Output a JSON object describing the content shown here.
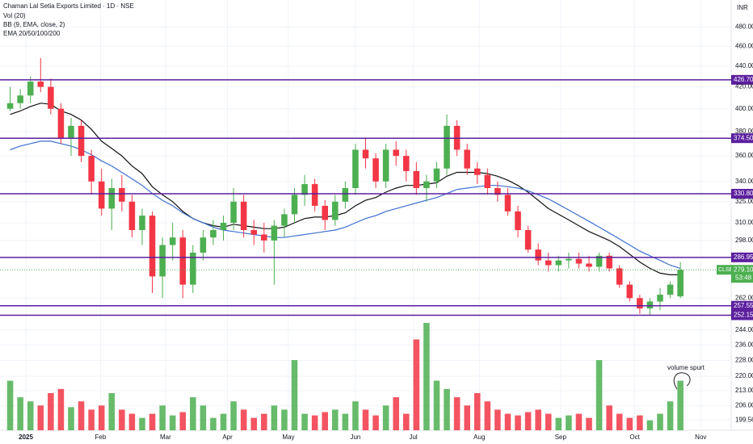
{
  "chart_data": {
    "type": "candlestick",
    "title": "Chaman Lal Setia Exports Limited · 1D · NSE",
    "indicators": [
      "Vol (20)",
      "BB (9, EMA, close, 2)",
      "EMA 20/50/100/200"
    ],
    "currency": "INR",
    "log_scale": true,
    "up_color": "#4caf50",
    "down_color": "#f23645",
    "xlim": [
      -1,
      71
    ],
    "xticks": [
      {
        "value": 1.55,
        "label": "2025"
      },
      {
        "value": 8.9,
        "label": "Feb"
      },
      {
        "value": 15.3,
        "label": "Mar"
      },
      {
        "value": 21.4,
        "label": "Apr"
      },
      {
        "value": 27.4,
        "label": "May"
      },
      {
        "value": 34,
        "label": "Jun"
      },
      {
        "value": 39.7,
        "label": "Jul"
      },
      {
        "value": 46.2,
        "label": "Aug"
      },
      {
        "value": 54.2,
        "label": "Sep"
      },
      {
        "value": 61.5,
        "label": "Oct"
      },
      {
        "value": 68,
        "label": "Nov"
      }
    ],
    "ylim": [
      195,
      510
    ],
    "yticks": [
      {
        "value": 480,
        "label": "480.00"
      },
      {
        "value": 460,
        "label": "460.00"
      },
      {
        "value": 440,
        "label": "440.00"
      },
      {
        "value": 420,
        "label": "420.00"
      },
      {
        "value": 400,
        "label": "400.00"
      },
      {
        "value": 380,
        "label": "380.00"
      },
      {
        "value": 360,
        "label": "360.00"
      },
      {
        "value": 340,
        "label": "340.00"
      },
      {
        "value": 325,
        "label": "325.00"
      },
      {
        "value": 310,
        "label": "310.00"
      },
      {
        "value": 298,
        "label": "298.00"
      },
      {
        "value": 262,
        "label": "262.00"
      },
      {
        "value": 244,
        "label": "244.00"
      },
      {
        "value": 236,
        "label": "236.00"
      },
      {
        "value": 228,
        "label": "228.00"
      },
      {
        "value": 220,
        "label": "220.00"
      },
      {
        "value": 213,
        "label": "213.00"
      },
      {
        "value": 206,
        "label": "206.00"
      },
      {
        "value": 199.56,
        "label": "199.56"
      }
    ],
    "grid": true,
    "levels": {
      "color": "#5b1f9e",
      "values": [
        {
          "value": 426.7,
          "label": "426.70"
        },
        {
          "value": 374.5,
          "label": "374.50"
        },
        {
          "value": 330.8,
          "label": "330.80"
        },
        {
          "value": 286.95,
          "label": "286.95"
        },
        {
          "value": 257.55,
          "label": "257.55"
        },
        {
          "value": 252.15,
          "label": "252.15"
        }
      ]
    },
    "last_price": {
      "value": 279.1,
      "label": "279.10",
      "symbol": "CLSEL",
      "countdown": "53:48"
    },
    "candles": [
      [
        400,
        420,
        398,
        405
      ],
      [
        405,
        418,
        400,
        412
      ],
      [
        412,
        430,
        405,
        425
      ],
      [
        425,
        448,
        415,
        420
      ],
      [
        420,
        428,
        395,
        400
      ],
      [
        400,
        405,
        370,
        375
      ],
      [
        375,
        392,
        360,
        385
      ],
      [
        385,
        390,
        355,
        360
      ],
      [
        360,
        365,
        330,
        340
      ],
      [
        340,
        350,
        315,
        320
      ],
      [
        320,
        342,
        305,
        335
      ],
      [
        335,
        345,
        318,
        325
      ],
      [
        325,
        330,
        300,
        305
      ],
      [
        305,
        320,
        295,
        315
      ],
      [
        315,
        318,
        265,
        275
      ],
      [
        275,
        300,
        262,
        295
      ],
      [
        295,
        310,
        285,
        300
      ],
      [
        300,
        305,
        262,
        270
      ],
      [
        270,
        295,
        265,
        290
      ],
      [
        290,
        305,
        285,
        300
      ],
      [
        300,
        312,
        295,
        305
      ],
      [
        305,
        315,
        298,
        310
      ],
      [
        310,
        335,
        305,
        325
      ],
      [
        325,
        330,
        300,
        305
      ],
      [
        305,
        312,
        295,
        302
      ],
      [
        302,
        310,
        290,
        298
      ],
      [
        298,
        312,
        270,
        308
      ],
      [
        308,
        320,
        300,
        316
      ],
      [
        316,
        335,
        310,
        330
      ],
      [
        330,
        345,
        322,
        338
      ],
      [
        338,
        342,
        318,
        322
      ],
      [
        322,
        326,
        305,
        312
      ],
      [
        312,
        330,
        308,
        325
      ],
      [
        325,
        340,
        320,
        335
      ],
      [
        335,
        370,
        330,
        365
      ],
      [
        365,
        375,
        350,
        358
      ],
      [
        358,
        362,
        335,
        340
      ],
      [
        340,
        370,
        335,
        365
      ],
      [
        365,
        372,
        352,
        360
      ],
      [
        360,
        365,
        340,
        348
      ],
      [
        348,
        355,
        330,
        335
      ],
      [
        335,
        345,
        325,
        340
      ],
      [
        340,
        355,
        335,
        350
      ],
      [
        350,
        395,
        345,
        385
      ],
      [
        385,
        390,
        360,
        365
      ],
      [
        365,
        370,
        345,
        350
      ],
      [
        350,
        355,
        338,
        345
      ],
      [
        345,
        350,
        330,
        335
      ],
      [
        335,
        340,
        325,
        330
      ],
      [
        330,
        335,
        315,
        318
      ],
      [
        318,
        322,
        300,
        305
      ],
      [
        305,
        308,
        290,
        292
      ],
      [
        292,
        296,
        282,
        285
      ],
      [
        285,
        290,
        278,
        282
      ],
      [
        282,
        288,
        278,
        285
      ],
      [
        285,
        290,
        280,
        286
      ],
      [
        286,
        290,
        280,
        283
      ],
      [
        283,
        288,
        278,
        281
      ],
      [
        281,
        290,
        278,
        288
      ],
      [
        288,
        290,
        278,
        280
      ],
      [
        280,
        282,
        268,
        270
      ],
      [
        270,
        272,
        260,
        262
      ],
      [
        262,
        264,
        253,
        256
      ],
      [
        256,
        262,
        252,
        260
      ],
      [
        260,
        268,
        255,
        264
      ],
      [
        264,
        272,
        262,
        270
      ],
      [
        263,
        284,
        262,
        279.1
      ]
    ],
    "ema": [
      {
        "color": "#111111",
        "values": [
          395,
          398,
          402,
          405,
          404,
          398,
          395,
          390,
          382,
          372,
          366,
          360,
          352,
          346,
          336,
          330,
          325,
          318,
          313,
          310,
          308,
          307,
          309,
          308,
          307,
          306,
          306,
          307,
          310,
          313,
          314,
          314,
          315,
          317,
          322,
          326,
          328,
          332,
          335,
          337,
          337,
          338,
          339,
          344,
          347,
          347,
          347,
          346,
          344,
          341,
          337,
          332,
          326,
          320,
          316,
          312,
          308,
          304,
          301,
          298,
          294,
          289,
          284,
          280,
          277,
          276,
          276
        ]
      },
      {
        "color": "#3d6fd1",
        "values": [
          365,
          368,
          370,
          372,
          372,
          370,
          368,
          365,
          361,
          356,
          352,
          347,
          342,
          337,
          331,
          326,
          322,
          317,
          313,
          310,
          307,
          305,
          304,
          303,
          302,
          301,
          300,
          300,
          301,
          302,
          303,
          304,
          305,
          307,
          310,
          313,
          315,
          318,
          320,
          322,
          324,
          326,
          328,
          331,
          334,
          335,
          336,
          337,
          337,
          336,
          335,
          333,
          330,
          327,
          323,
          319,
          315,
          311,
          307,
          303,
          299,
          295,
          291,
          288,
          285,
          282,
          280
        ]
      }
    ],
    "volume": {
      "ylim": [
        0,
        130
      ],
      "values": [
        60,
        40,
        35,
        30,
        45,
        50,
        28,
        35,
        25,
        30,
        45,
        25,
        20,
        15,
        20,
        30,
        18,
        22,
        40,
        30,
        15,
        20,
        35,
        25,
        15,
        20,
        30,
        25,
        85,
        20,
        18,
        22,
        25,
        20,
        35,
        25,
        18,
        30,
        40,
        20,
        110,
        130,
        60,
        50,
        40,
        30,
        45,
        35,
        25,
        20,
        18,
        22,
        25,
        20,
        15,
        18,
        20,
        15,
        85,
        30,
        20,
        15,
        18,
        12,
        20,
        35,
        60
      ]
    },
    "annotation": "volume spurt"
  }
}
